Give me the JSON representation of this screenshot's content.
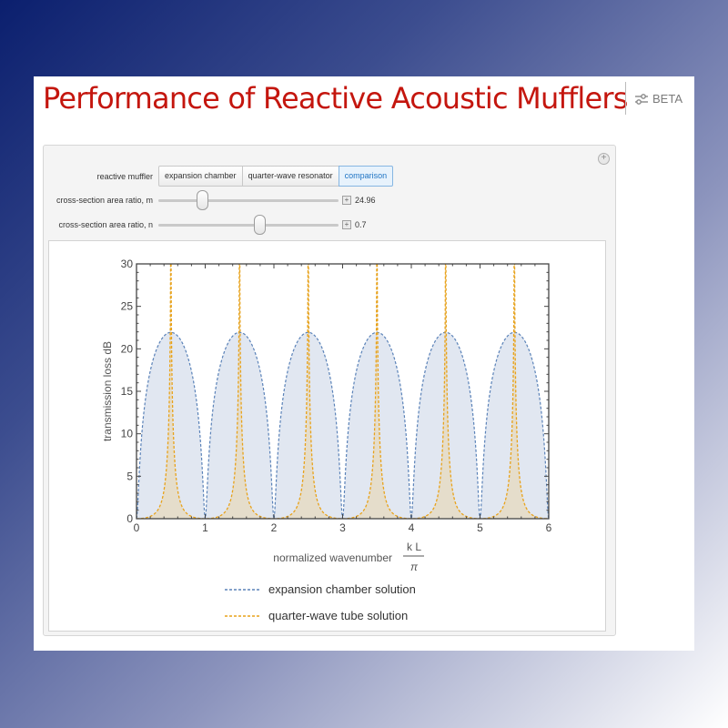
{
  "page": {
    "title": "Performance of Reactive Acoustic Mufflers",
    "beta_label": "BETA"
  },
  "controls": {
    "muffler_label": "reactive muffler",
    "muffler_options": [
      "expansion chamber",
      "quarter-wave resonator",
      "comparison"
    ],
    "muffler_selected": "comparison",
    "slider_m": {
      "label": "cross-section area ratio, m",
      "value": 24.96,
      "value_text": "24.96",
      "min": 1,
      "max": 100
    },
    "slider_n": {
      "label": "cross-section area ratio, n",
      "value": 0.7,
      "value_text": "0.7",
      "min": 0,
      "max": 1.25
    }
  },
  "colors": {
    "title": "#c4160e",
    "expansion": "#5a82b8",
    "expansion_fill": "#dfe6f0",
    "quarter": "#e8a21a",
    "quarter_fill": "#e6dcc6"
  },
  "chart_data": {
    "type": "area",
    "xlabel": "normalized wavenumber",
    "xlabel_fraction": {
      "numerator": "k L",
      "denominator": "π"
    },
    "ylabel": "transmission loss dB",
    "xlim": [
      0,
      6
    ],
    "ylim": [
      0,
      30
    ],
    "x_ticks": [
      "0",
      "1",
      "2",
      "3",
      "4",
      "5",
      "6"
    ],
    "y_ticks": [
      "0",
      "5",
      "10",
      "15",
      "20",
      "25",
      "30"
    ],
    "series": [
      {
        "name": "expansion chamber solution",
        "style": "dashed",
        "x": [
          0,
          0.25,
          0.5,
          0.75,
          1,
          1.25,
          1.5,
          1.75,
          2,
          2.25,
          2.5,
          2.75,
          3,
          3.25,
          3.5,
          3.75,
          4,
          4.25,
          4.5,
          4.75,
          5,
          5.25,
          5.5,
          5.75,
          6
        ],
        "y": [
          0,
          18.9,
          21.96,
          18.9,
          0,
          18.9,
          21.96,
          18.9,
          0,
          18.9,
          21.96,
          18.9,
          0,
          18.9,
          21.96,
          18.9,
          0,
          18.9,
          21.96,
          18.9,
          0,
          18.9,
          21.96,
          18.9,
          0
        ]
      },
      {
        "name": "quarter-wave tube solution",
        "style": "dashed",
        "x": [
          0,
          0.25,
          0.4,
          0.5,
          0.6,
          0.75,
          1,
          1.25,
          1.4,
          1.5,
          1.6,
          1.75,
          2,
          2.25,
          2.4,
          2.5,
          2.6,
          2.75,
          3,
          3.25,
          3.4,
          3.5,
          3.6,
          3.75,
          4,
          4.25,
          4.4,
          4.5,
          4.6,
          4.75,
          5,
          5.25,
          5.4,
          5.5,
          5.6,
          5.75,
          6
        ],
        "y": [
          0,
          0.9,
          5.4,
          30,
          5.4,
          0.9,
          0,
          0.9,
          5.4,
          30,
          5.4,
          0.9,
          0,
          0.9,
          5.4,
          30,
          5.4,
          0.9,
          0,
          0.9,
          5.4,
          30,
          5.4,
          0.9,
          0,
          0.9,
          5.4,
          30,
          5.4,
          0.9,
          0,
          0.9,
          5.4,
          30,
          5.4,
          0.9,
          0
        ]
      }
    ]
  }
}
